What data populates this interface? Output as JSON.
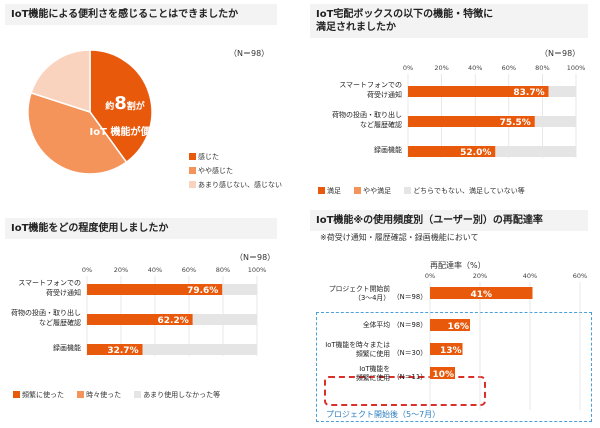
{
  "colors": {
    "c1": "#e8590c",
    "c2": "#f4935a",
    "c3": "#fad3be",
    "c4": "#e5e5e5",
    "box": "#4a9fd8",
    "dash": "#d9302c"
  },
  "panel1": {
    "title": "IoT機能による便利さを感じることはできましたか",
    "n": "（N＝98）",
    "center_line1_pre": "約",
    "center_big": "8",
    "center_line1_post": "割が",
    "center_line2": "IoT 機能が便利"
  },
  "panel2": {
    "title_line1": "IoT宅配ボックスの以下の機能・特徴に",
    "title_line2": "満足されましたか",
    "n": "（N＝98）"
  },
  "panel3": {
    "title": "IoT機能をどの程度使用しましたか",
    "n": "（N＝98）"
  },
  "panel4": {
    "title": "IoT機能※の使用頻度別（ユーザー別）の再配達率",
    "subtitle": "※荷受け通知・履歴確認・録画機能において",
    "axis_title": "再配達率（%）",
    "box_label": "プロジェクト開始後（5〜7月）"
  },
  "chart_data": [
    {
      "type": "pie",
      "title": "IoT機能による便利さを感じることはできましたか",
      "categories": [
        "感じた",
        "やや感じた",
        "あまり感じない、感じない"
      ],
      "values": [
        40,
        40,
        20
      ]
    },
    {
      "type": "bar",
      "orientation": "horizontal",
      "stacked": true,
      "title": "IoT宅配ボックスの以下の機能・特徴に満足されましたか",
      "categories": [
        "スマートフォンでの\n荷受け通知",
        "荷物の投函・取り出し\nなど履歴確認",
        "録画機能"
      ],
      "series": [
        {
          "name": "満足",
          "values": [
            83.7,
            75.5,
            52.0
          ]
        },
        {
          "name": "やや満足",
          "values": [
            0,
            0,
            0
          ]
        },
        {
          "name": "どちらでもない、満足していない等",
          "values": [
            16.3,
            24.5,
            48.0
          ]
        }
      ],
      "labels": [
        "83.7%",
        "75.5%",
        "52.0%"
      ],
      "xticks": [
        "0%",
        "20%",
        "40%",
        "60%",
        "80%",
        "100%"
      ],
      "xlim": [
        0,
        100
      ]
    },
    {
      "type": "bar",
      "orientation": "horizontal",
      "stacked": true,
      "title": "IoT機能をどの程度使用しましたか",
      "categories": [
        "スマートフォンでの\n荷受け通知",
        "荷物の投函・取り出し\nなど履歴確認",
        "録画機能"
      ],
      "series": [
        {
          "name": "頻繁に使った",
          "values": [
            79.6,
            62.2,
            32.7
          ]
        },
        {
          "name": "時々使った",
          "values": [
            0,
            0,
            0
          ]
        },
        {
          "name": "あまり使用しなかった等",
          "values": [
            20.4,
            37.8,
            67.3
          ]
        }
      ],
      "labels": [
        "79.6%",
        "62.2%",
        "32.7%"
      ],
      "xticks": [
        "0%",
        "20%",
        "40%",
        "60%",
        "80%",
        "100%"
      ],
      "xlim": [
        0,
        100
      ]
    },
    {
      "type": "bar",
      "orientation": "horizontal",
      "title": "IoT機能※の使用頻度別（ユーザー別）の再配達率",
      "categories": [
        "プロジェクト開始前\n（3〜4月）",
        "全体平均",
        "IoT機能を時々または\n頻繁に使用",
        "IoT機能を\n頻繁に使用"
      ],
      "n_labels": [
        "（N＝98）",
        "（N＝98）",
        "（N＝30）",
        "（N＝11）"
      ],
      "values": [
        41,
        16,
        13,
        10
      ],
      "labels": [
        "41%",
        "16%",
        "13%",
        "10%"
      ],
      "xticks": [
        "0%",
        "20%",
        "40%",
        "60%"
      ],
      "xlim": [
        0,
        60
      ]
    }
  ]
}
